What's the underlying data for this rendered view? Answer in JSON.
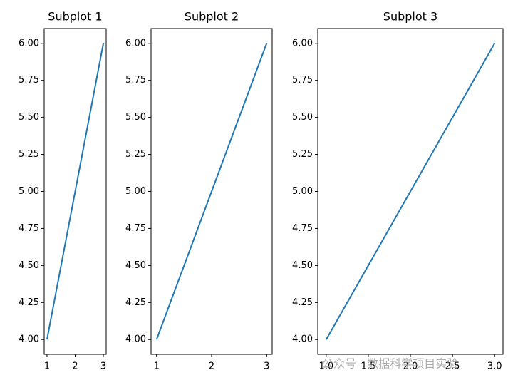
{
  "chart_data": [
    {
      "type": "line",
      "title": "Subplot 1",
      "x": [
        1,
        2,
        3
      ],
      "series": [
        {
          "color": "#1f77b4",
          "values": [
            4,
            5,
            6
          ]
        }
      ],
      "xlim": [
        0.9,
        3.1
      ],
      "ylim": [
        3.9,
        6.1
      ],
      "xticks": [
        1,
        2,
        3
      ],
      "yticks": [
        {
          "value": 4,
          "label": "4.00"
        },
        {
          "value": 4.25,
          "label": "4.25"
        },
        {
          "value": 4.5,
          "label": "4.50"
        },
        {
          "value": 4.75,
          "label": "4.75"
        },
        {
          "value": 5,
          "label": "5.00"
        },
        {
          "value": 5.25,
          "label": "5.25"
        },
        {
          "value": 5.5,
          "label": "5.50"
        },
        {
          "value": 5.75,
          "label": "5.75"
        },
        {
          "value": 6,
          "label": "6.00"
        }
      ]
    },
    {
      "type": "line",
      "title": "Subplot 2",
      "x": [
        1,
        2,
        3
      ],
      "series": [
        {
          "color": "#1f77b4",
          "values": [
            4,
            5,
            6
          ]
        }
      ],
      "xlim": [
        0.9,
        3.1
      ],
      "ylim": [
        3.9,
        6.1
      ],
      "xticks": [
        1,
        2,
        3
      ],
      "yticks": [
        {
          "value": 4,
          "label": "4.00"
        },
        {
          "value": 4.25,
          "label": "4.25"
        },
        {
          "value": 4.5,
          "label": "4.50"
        },
        {
          "value": 4.75,
          "label": "4.75"
        },
        {
          "value": 5,
          "label": "5.00"
        },
        {
          "value": 5.25,
          "label": "5.25"
        },
        {
          "value": 5.5,
          "label": "5.50"
        },
        {
          "value": 5.75,
          "label": "5.75"
        },
        {
          "value": 6,
          "label": "6.00"
        }
      ]
    },
    {
      "type": "line",
      "title": "Subplot 3",
      "x": [
        1,
        2,
        3
      ],
      "series": [
        {
          "color": "#1f77b4",
          "values": [
            4,
            5,
            6
          ]
        }
      ],
      "xlim": [
        0.9,
        3.1
      ],
      "ylim": [
        3.9,
        6.1
      ],
      "xticks": [
        {
          "value": 1,
          "label": "1.0"
        },
        1.5,
        {
          "value": 2,
          "label": "2.0"
        },
        2.5,
        {
          "value": 3,
          "label": "3.0"
        }
      ],
      "yticks": [
        {
          "value": 4,
          "label": "4.00"
        },
        {
          "value": 4.25,
          "label": "4.25"
        },
        {
          "value": 4.5,
          "label": "4.50"
        },
        {
          "value": 4.75,
          "label": "4.75"
        },
        {
          "value": 5,
          "label": "5.00"
        },
        {
          "value": 5.25,
          "label": "5.25"
        },
        {
          "value": 5.5,
          "label": "5.50"
        },
        {
          "value": 5.75,
          "label": "5.75"
        },
        {
          "value": 6,
          "label": "6.00"
        }
      ]
    }
  ],
  "watermark": "公众号 · 数据科学项目实验"
}
